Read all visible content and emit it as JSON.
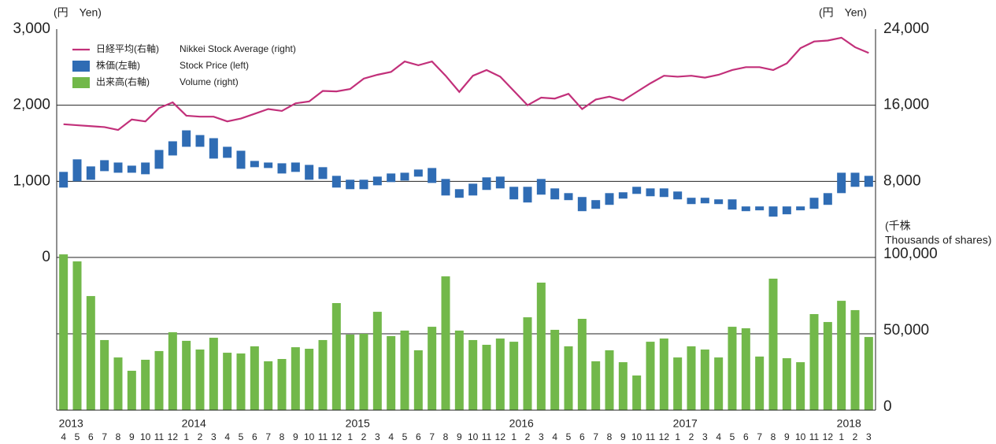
{
  "chart_data": [
    {
      "type": "combo",
      "y_unit": "(円　Yen)",
      "y2_unit": "(円　Yen)",
      "ylim": [
        0,
        3000
      ],
      "yticks": [
        {
          "value": 0,
          "label": "0"
        },
        {
          "value": 1000,
          "label": "1,000"
        },
        {
          "value": 2000,
          "label": "2,000"
        },
        {
          "value": 3000,
          "label": "3,000"
        }
      ],
      "y2lim": [
        0,
        24000
      ],
      "y2ticks": [
        {
          "value": 8000,
          "label": "8,000"
        },
        {
          "value": 16000,
          "label": "16,000"
        },
        {
          "value": 24000,
          "label": "24,000"
        }
      ],
      "grid": true,
      "series": [
        {
          "name": "日経平均(右軸)",
          "name_en": "Nikkei Stock Average (right)",
          "type": "line",
          "axis": "y2",
          "color": "#c2307a",
          "values": [
            14000,
            13900,
            13800,
            13700,
            13400,
            14500,
            14300,
            15700,
            16300,
            14900,
            14800,
            14800,
            14300,
            14600,
            15100,
            15600,
            15400,
            16200,
            16400,
            17500,
            17450,
            17700,
            18800,
            19200,
            19500,
            20600,
            20200,
            20600,
            19100,
            17400,
            19100,
            19700,
            19000,
            17500,
            16000,
            16800,
            16700,
            17200,
            15600,
            16600,
            16900,
            16500,
            17400,
            18300,
            19100,
            19000,
            19100,
            18900,
            19200,
            19700,
            20000,
            20000,
            19700,
            20400,
            22000,
            22700,
            22800,
            23100,
            22100,
            21500
          ]
        },
        {
          "name": "株価(左軸)",
          "name_en": "Stock Price (left)",
          "type": "range",
          "axis": "y",
          "color": "#2f6cb4",
          "high": [
            1124,
            1289,
            1196,
            1278,
            1247,
            1206,
            1247,
            1412,
            1526,
            1670,
            1608,
            1567,
            1454,
            1402,
            1268,
            1247,
            1237,
            1247,
            1216,
            1186,
            1072,
            1021,
            1021,
            1062,
            1103,
            1113,
            1155,
            1175,
            1031,
            897,
            969,
            1052,
            1062,
            928,
            928,
            1031,
            907,
            845,
            794,
            753,
            845,
            856,
            928,
            907,
            907,
            866,
            784,
            784,
            763,
            763,
            670,
            670,
            670,
            670,
            670,
            784,
            845,
            1113,
            1113,
            1072
          ],
          "low": [
            918,
            1000,
            1021,
            1134,
            1113,
            1113,
            1093,
            1165,
            1340,
            1454,
            1454,
            1299,
            1309,
            1165,
            1186,
            1175,
            1103,
            1124,
            1021,
            1031,
            918,
            897,
            897,
            948,
            990,
            1010,
            1062,
            979,
            814,
            784,
            814,
            887,
            907,
            763,
            722,
            825,
            763,
            753,
            608,
            639,
            691,
            773,
            835,
            804,
            794,
            763,
            701,
            711,
            701,
            629,
            608,
            619,
            536,
            567,
            619,
            639,
            691,
            845,
            928,
            928
          ]
        }
      ]
    },
    {
      "type": "bar",
      "y_label": [
        "(千株",
        "Thousands of shares)"
      ],
      "ylim": [
        0,
        100000
      ],
      "yticks": [
        {
          "value": 0,
          "label": "0"
        },
        {
          "value": 50000,
          "label": "50,000"
        },
        {
          "value": 100000,
          "label": "100,000"
        }
      ],
      "grid": true,
      "categories": [
        "4",
        "5",
        "6",
        "7",
        "8",
        "9",
        "10",
        "11",
        "12",
        "1",
        "2",
        "3",
        "4",
        "5",
        "6",
        "7",
        "8",
        "9",
        "10",
        "11",
        "12",
        "1",
        "2",
        "3",
        "4",
        "5",
        "6",
        "7",
        "8",
        "9",
        "10",
        "11",
        "12",
        "1",
        "2",
        "3",
        "4",
        "5",
        "6",
        "7",
        "8",
        "9",
        "10",
        "11",
        "12",
        "1",
        "2",
        "3",
        "4",
        "5",
        "6",
        "7",
        "8",
        "9",
        "10",
        "11",
        "12",
        "1",
        "2",
        "3"
      ],
      "year_labels": [
        "2013",
        null,
        null,
        null,
        null,
        null,
        null,
        null,
        null,
        "2014",
        null,
        null,
        null,
        null,
        null,
        null,
        null,
        null,
        null,
        null,
        null,
        "2015",
        null,
        null,
        null,
        null,
        null,
        null,
        null,
        null,
        null,
        null,
        null,
        "2016",
        null,
        null,
        null,
        null,
        null,
        null,
        null,
        null,
        null,
        null,
        null,
        "2017",
        null,
        null,
        null,
        null,
        null,
        null,
        null,
        null,
        null,
        null,
        null,
        "2018",
        null,
        null
      ],
      "series": [
        {
          "name": "出来高(右軸)",
          "name_en": "Volume (right)",
          "color": "#72b84a",
          "values": [
            102000,
            97400,
            74700,
            45900,
            34500,
            25800,
            33000,
            38700,
            51000,
            45400,
            39700,
            47400,
            37600,
            37100,
            41800,
            32000,
            33500,
            41200,
            40200,
            45900,
            70100,
            49500,
            50000,
            64400,
            48500,
            52100,
            39200,
            54600,
            87600,
            52100,
            45900,
            42800,
            46900,
            44800,
            60800,
            83500,
            52600,
            41800,
            59800,
            32000,
            39200,
            31400,
            22700,
            44800,
            46900,
            34500,
            41800,
            39700,
            34500,
            54600,
            53600,
            35100,
            86100,
            34000,
            31400,
            62900,
            57700,
            71600,
            65500,
            47900
          ]
        }
      ]
    }
  ]
}
